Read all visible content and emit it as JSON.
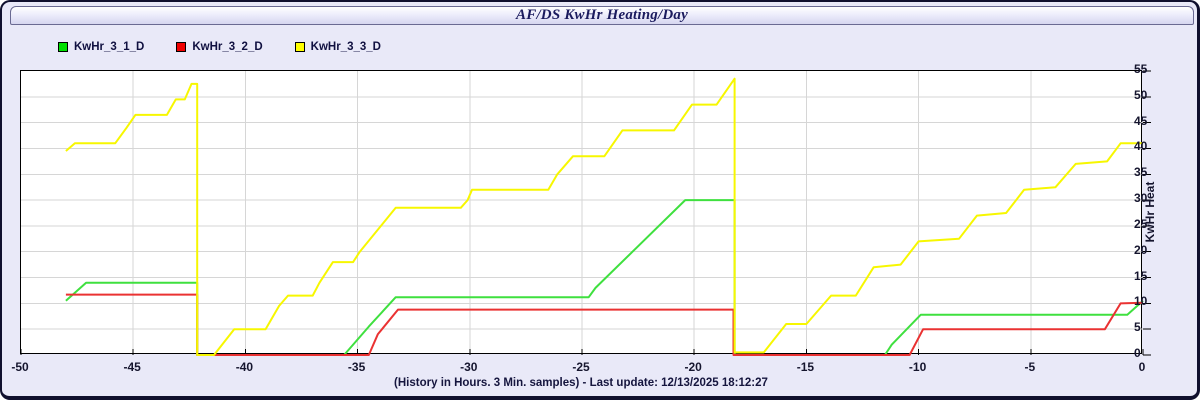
{
  "title": "AF/DS KwHr Heating/Day",
  "legend": {
    "items": [
      {
        "label": "KwHr_3_1_D",
        "color": "#00e000"
      },
      {
        "label": "KwHr_3_2_D",
        "color": "#f00000"
      },
      {
        "label": "KwHr_3_3_D",
        "color": "#ffff00"
      }
    ]
  },
  "footer": {
    "text": "(History in Hours. 3 Min. samples) - Last update: 12/13/2025 18:12:27"
  },
  "chart_data": {
    "type": "line",
    "title": "AF/DS KwHr Heating/Day",
    "xlabel": "(History in Hours. 3 Min. samples)",
    "ylabel": "KwHr Heat",
    "xlim": [
      -50,
      0
    ],
    "ylim": [
      0,
      55
    ],
    "x_ticks": [
      -50,
      -45,
      -40,
      -35,
      -30,
      -25,
      -20,
      -15,
      -10,
      -5,
      0
    ],
    "y_ticks": [
      0,
      5,
      10,
      15,
      20,
      25,
      30,
      35,
      40,
      45,
      50,
      55
    ],
    "grid": true,
    "legend_position": "top-left",
    "colors": {
      "grid": "#d6d6d6",
      "plot_bg": "#ffffff",
      "window_bg": "#e9e9f8"
    },
    "series": [
      {
        "name": "KwHr_3_1_D",
        "color": "#3fe03f",
        "points": [
          [
            -48,
            10.5
          ],
          [
            -47.1,
            14
          ],
          [
            -42.15,
            14
          ],
          [
            -42.15,
            0
          ],
          [
            -35.6,
            0
          ],
          [
            -34.5,
            5.5
          ],
          [
            -33.3,
            11.2
          ],
          [
            -24.7,
            11.2
          ],
          [
            -24.4,
            13
          ],
          [
            -20.4,
            30
          ],
          [
            -18.2,
            30
          ],
          [
            -18.2,
            0
          ],
          [
            -11.5,
            0
          ],
          [
            -11.2,
            2
          ],
          [
            -9.9,
            7.8
          ],
          [
            -0.7,
            7.8
          ],
          [
            0,
            10.5
          ]
        ]
      },
      {
        "name": "KwHr_3_2_D",
        "color": "#ea3232",
        "points": [
          [
            -48,
            11.7
          ],
          [
            -42.15,
            11.7
          ],
          [
            -42.15,
            0
          ],
          [
            -34.5,
            0
          ],
          [
            -34.1,
            4
          ],
          [
            -33.2,
            8.8
          ],
          [
            -18.25,
            8.8
          ],
          [
            -18.25,
            0
          ],
          [
            -10.4,
            0
          ],
          [
            -9.8,
            5
          ],
          [
            -1.7,
            5
          ],
          [
            -1.0,
            10
          ],
          [
            0,
            10.1
          ]
        ]
      },
      {
        "name": "KwHr_3_3_D",
        "color": "#f7f700",
        "points": [
          [
            -48,
            39.5
          ],
          [
            -47.6,
            41
          ],
          [
            -45.8,
            41
          ],
          [
            -45.3,
            44
          ],
          [
            -44.9,
            46.5
          ],
          [
            -43.5,
            46.5
          ],
          [
            -43.1,
            49.5
          ],
          [
            -42.7,
            49.5
          ],
          [
            -42.4,
            52.5
          ],
          [
            -42.15,
            52.5
          ],
          [
            -42.15,
            0
          ],
          [
            -41.4,
            0
          ],
          [
            -40.5,
            5
          ],
          [
            -39.1,
            5
          ],
          [
            -38.5,
            9.5
          ],
          [
            -38.1,
            11.5
          ],
          [
            -37.0,
            11.5
          ],
          [
            -36.7,
            14
          ],
          [
            -36.1,
            18
          ],
          [
            -35.2,
            18
          ],
          [
            -34.9,
            20
          ],
          [
            -33.3,
            28.5
          ],
          [
            -30.4,
            28.5
          ],
          [
            -30.1,
            30
          ],
          [
            -29.9,
            32
          ],
          [
            -26.5,
            32
          ],
          [
            -26.1,
            35
          ],
          [
            -25.4,
            38.5
          ],
          [
            -24.0,
            38.5
          ],
          [
            -23.2,
            43.5
          ],
          [
            -20.9,
            43.5
          ],
          [
            -20.1,
            48.5
          ],
          [
            -19.0,
            48.5
          ],
          [
            -18.2,
            53.5
          ],
          [
            -18.2,
            0.5
          ],
          [
            -16.9,
            0.5
          ],
          [
            -15.9,
            6
          ],
          [
            -15.0,
            6
          ],
          [
            -13.9,
            11.5
          ],
          [
            -12.8,
            11.5
          ],
          [
            -12.0,
            17
          ],
          [
            -10.8,
            17.5
          ],
          [
            -10.0,
            22
          ],
          [
            -8.2,
            22.5
          ],
          [
            -7.4,
            27
          ],
          [
            -6.1,
            27.5
          ],
          [
            -5.3,
            32
          ],
          [
            -3.9,
            32.5
          ],
          [
            -3.0,
            37
          ],
          [
            -1.6,
            37.5
          ],
          [
            -1.0,
            41
          ],
          [
            0,
            41
          ]
        ]
      }
    ]
  }
}
